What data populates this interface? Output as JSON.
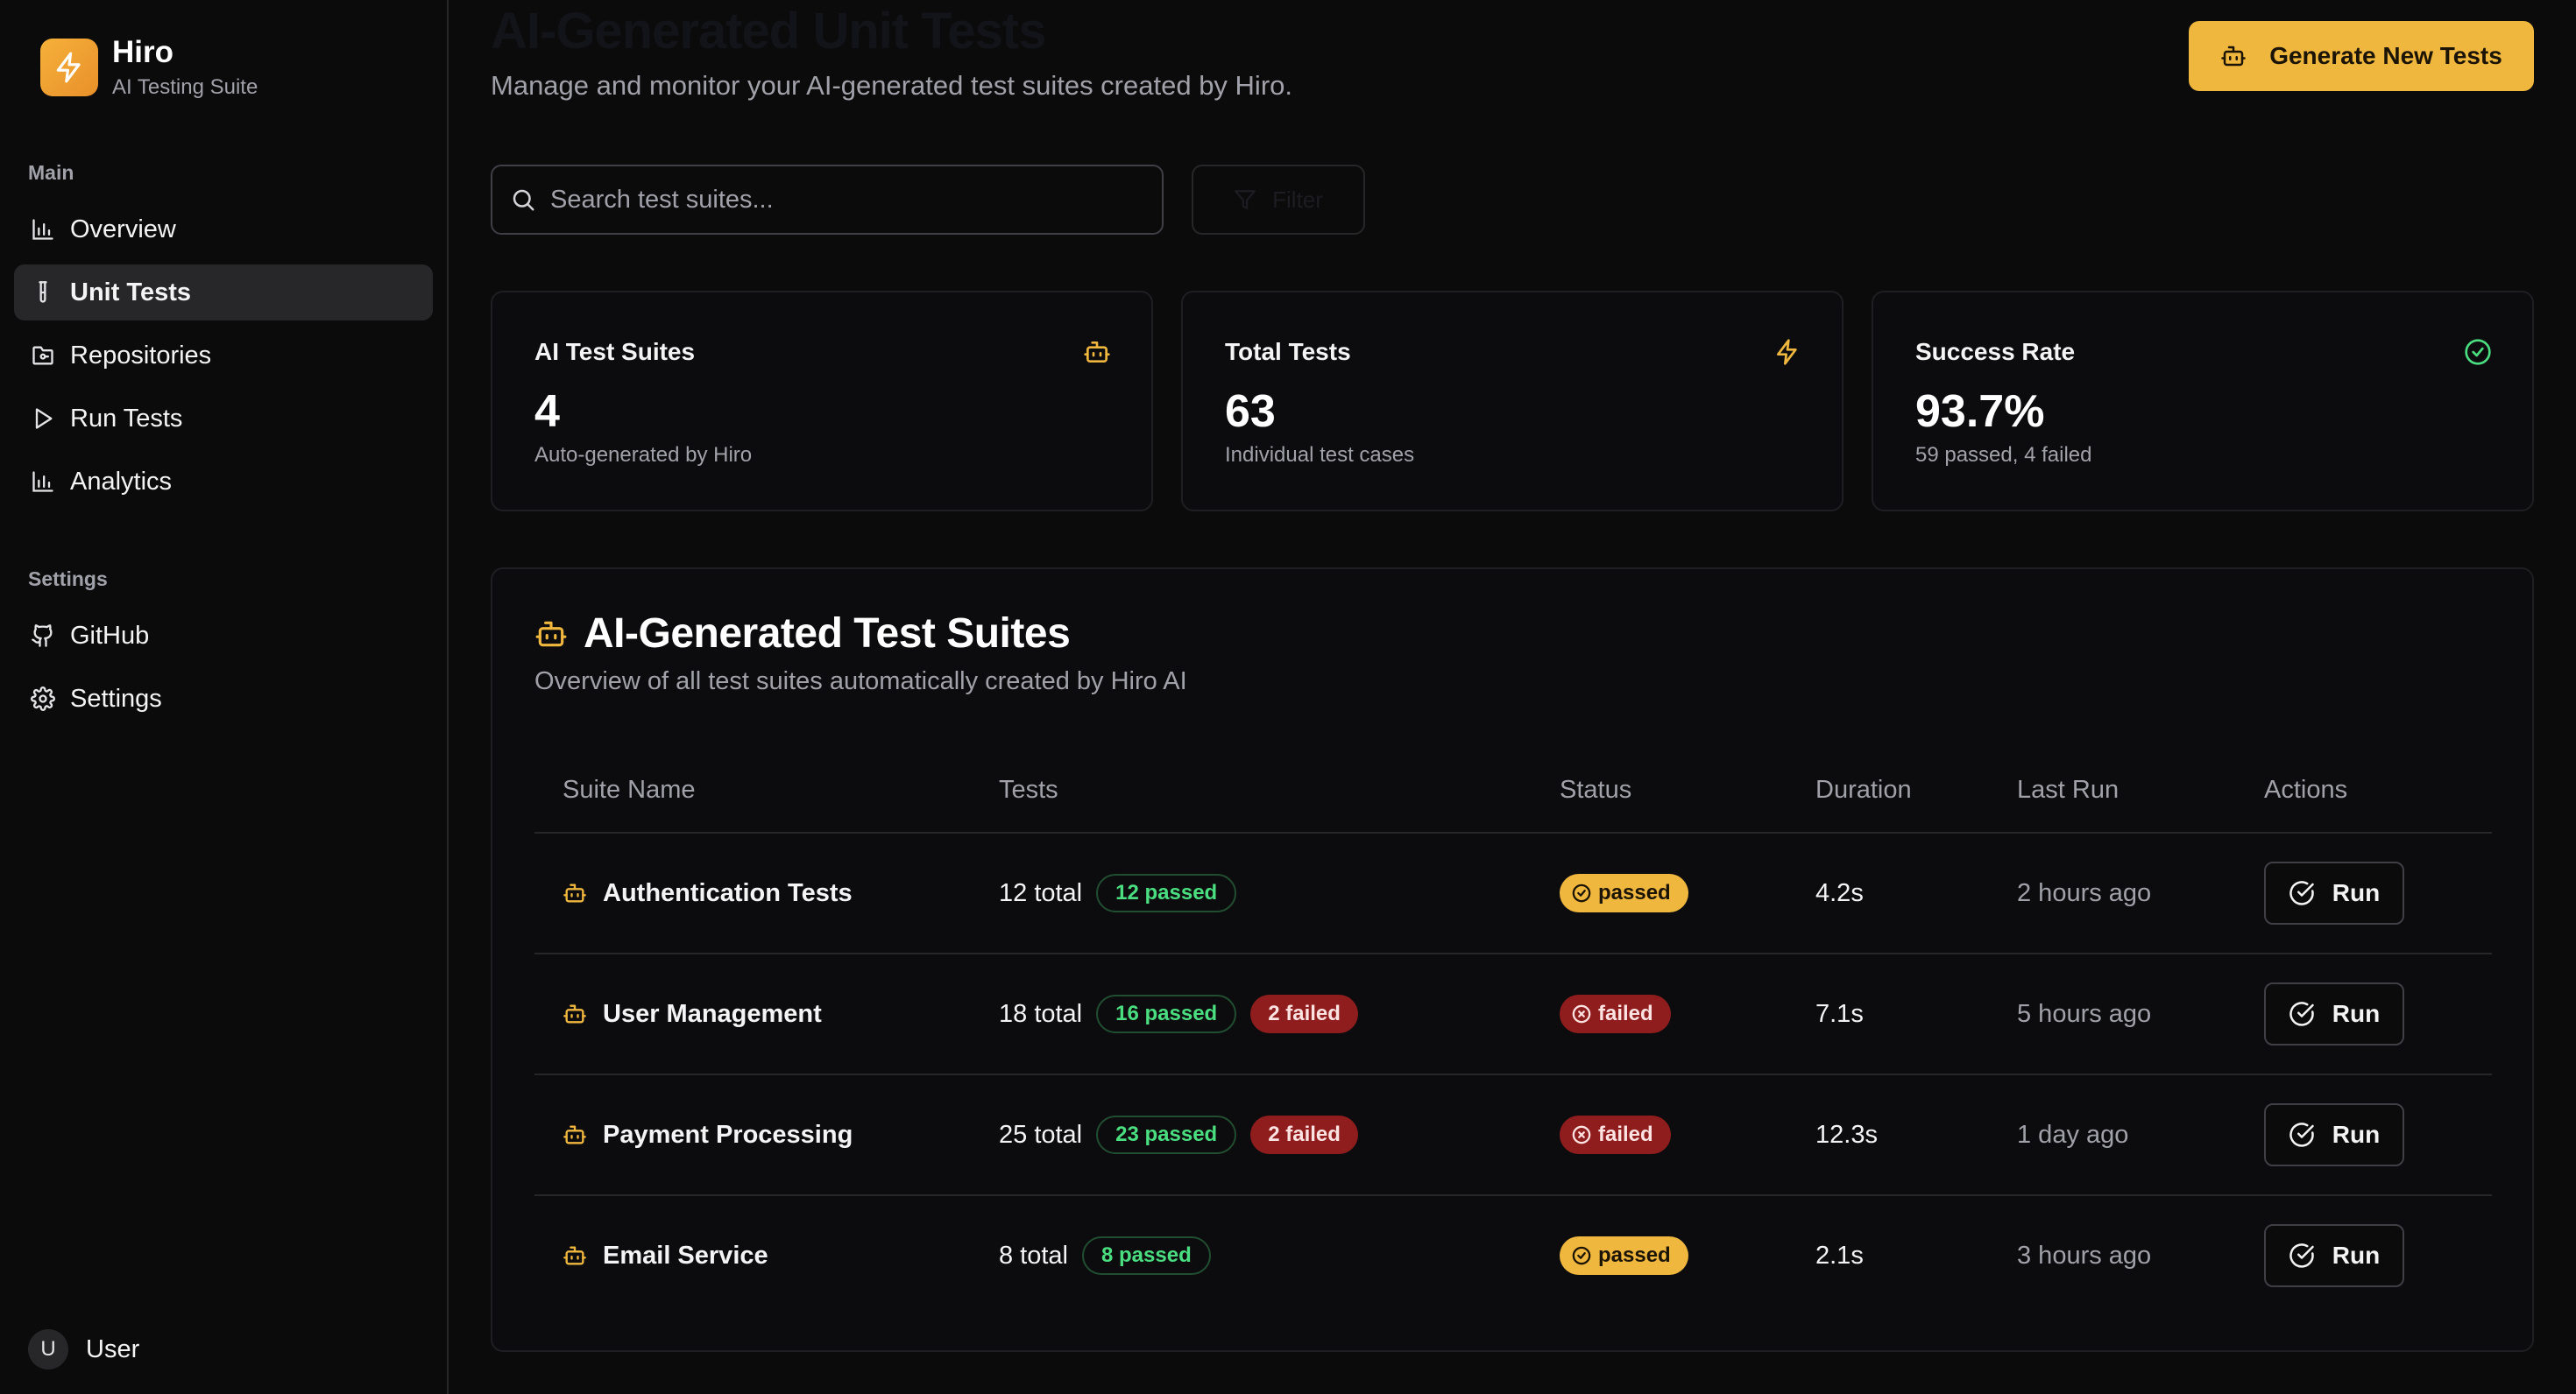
{
  "brand": {
    "name": "Hiro",
    "subtitle": "AI Testing Suite",
    "icon": "bolt-icon"
  },
  "sidebar": {
    "main_label": "Main",
    "main_items": [
      {
        "label": "Overview",
        "icon": "bar-chart-icon",
        "active": false
      },
      {
        "label": "Unit Tests",
        "icon": "test-tube-icon",
        "active": true
      },
      {
        "label": "Repositories",
        "icon": "folder-git-icon",
        "active": false
      },
      {
        "label": "Run Tests",
        "icon": "play-icon",
        "active": false
      },
      {
        "label": "Analytics",
        "icon": "bar-chart-icon",
        "active": false
      }
    ],
    "settings_label": "Settings",
    "settings_items": [
      {
        "label": "GitHub",
        "icon": "github-icon"
      },
      {
        "label": "Settings",
        "icon": "gear-icon"
      }
    ],
    "user": {
      "initial": "U",
      "name": "User"
    }
  },
  "header": {
    "title": "AI-Generated Unit Tests",
    "subtitle": "Manage and monitor your AI-generated test suites created by Hiro.",
    "generate_label": "Generate New Tests"
  },
  "toolbar": {
    "search_placeholder": "Search test suites...",
    "filter_label": "Filter"
  },
  "stats": [
    {
      "title": "AI Test Suites",
      "value": "4",
      "desc": "Auto-generated by Hiro",
      "icon": "bot-icon",
      "icon_color": "#f0b73e"
    },
    {
      "title": "Total Tests",
      "value": "63",
      "desc": "Individual test cases",
      "icon": "bolt-icon",
      "icon_color": "#f0b73e"
    },
    {
      "title": "Success Rate",
      "value": "93.7%",
      "desc": "59 passed, 4 failed",
      "icon": "check-circle-icon",
      "icon_color": "#4ade80"
    }
  ],
  "suites": {
    "title": "AI-Generated Test Suites",
    "subtitle": "Overview of all test suites automatically created by Hiro AI",
    "columns": [
      "Suite Name",
      "Tests",
      "Status",
      "Duration",
      "Last Run",
      "Actions"
    ],
    "rows": [
      {
        "name": "Authentication Tests",
        "total": "12 total",
        "passed": "12 passed",
        "failed": "",
        "status": "passed",
        "duration": "4.2s",
        "last_run": "2 hours ago",
        "action": "Run"
      },
      {
        "name": "User Management",
        "total": "18 total",
        "passed": "16 passed",
        "failed": "2 failed",
        "status": "failed",
        "duration": "7.1s",
        "last_run": "5 hours ago",
        "action": "Run"
      },
      {
        "name": "Payment Processing",
        "total": "25 total",
        "passed": "23 passed",
        "failed": "2 failed",
        "status": "failed",
        "duration": "12.3s",
        "last_run": "1 day ago",
        "action": "Run"
      },
      {
        "name": "Email Service",
        "total": "8 total",
        "passed": "8 passed",
        "failed": "",
        "status": "passed",
        "duration": "2.1s",
        "last_run": "3 hours ago",
        "action": "Run"
      }
    ]
  },
  "colors": {
    "accent": "#f0b73e",
    "success": "#4ade80",
    "danger": "#8f1d1d"
  }
}
